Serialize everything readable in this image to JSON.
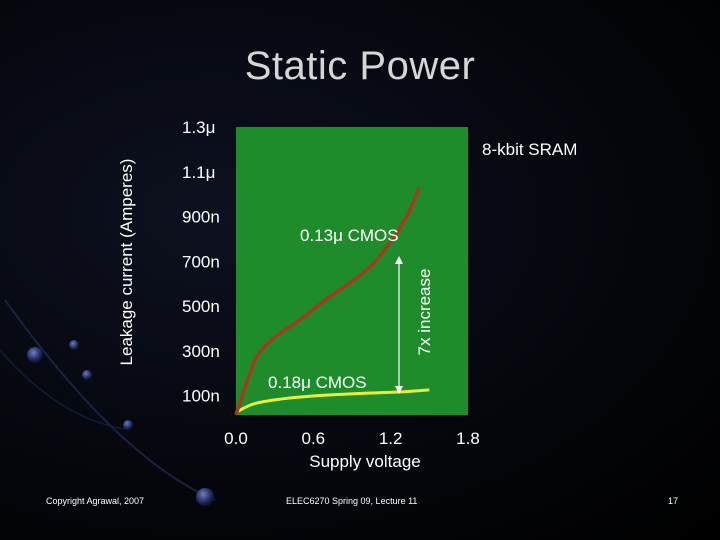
{
  "slide": {
    "title": "Static Power",
    "footer_left": "Copyright Agrawal, 2007",
    "footer_center": "ELEC6270 Spring 09, Lecture 11",
    "page_number": "17"
  },
  "colors": {
    "plot_bg": "#1e8c2a",
    "curve_013": "#a63a1c",
    "curve_018": "#e8ee3a",
    "arrow": "#ffffff"
  },
  "chart_data": {
    "type": "line",
    "title": "",
    "xlabel": "Supply voltage",
    "ylabel": "Leakage current (Amperes)",
    "x_ticks": [
      "0.0",
      "0.6",
      "1.2",
      "1.8"
    ],
    "y_ticks": [
      "100n",
      "300n",
      "500n",
      "700n",
      "900n",
      "1.1μ",
      "1.3μ"
    ],
    "xlim": [
      0.0,
      1.8
    ],
    "ylim": [
      1.3e-08,
      1.3e-06
    ],
    "series": [
      {
        "name": "0.13μ CMOS",
        "x": [
          0.0,
          0.15,
          0.3,
          0.5,
          0.7,
          0.9,
          1.05,
          1.15,
          1.25,
          1.35,
          1.42
        ],
        "y": [
          1.4e-08,
          2.6e-07,
          3.6e-07,
          4.4e-07,
          5.3e-07,
          6.1e-07,
          6.8e-07,
          7.5e-07,
          8.3e-07,
          9.3e-07,
          1.03e-06
        ]
      },
      {
        "name": "0.18μ CMOS",
        "x": [
          0.0,
          0.15,
          0.4,
          0.7,
          1.0,
          1.3,
          1.5
        ],
        "y": [
          2.5e-08,
          6.5e-08,
          8.8e-08,
          1.02e-07,
          1.1e-07,
          1.17e-07,
          1.25e-07
        ]
      }
    ],
    "annotations": [
      {
        "text": "8-kbit SRAM"
      },
      {
        "text": "7x increase"
      }
    ]
  }
}
